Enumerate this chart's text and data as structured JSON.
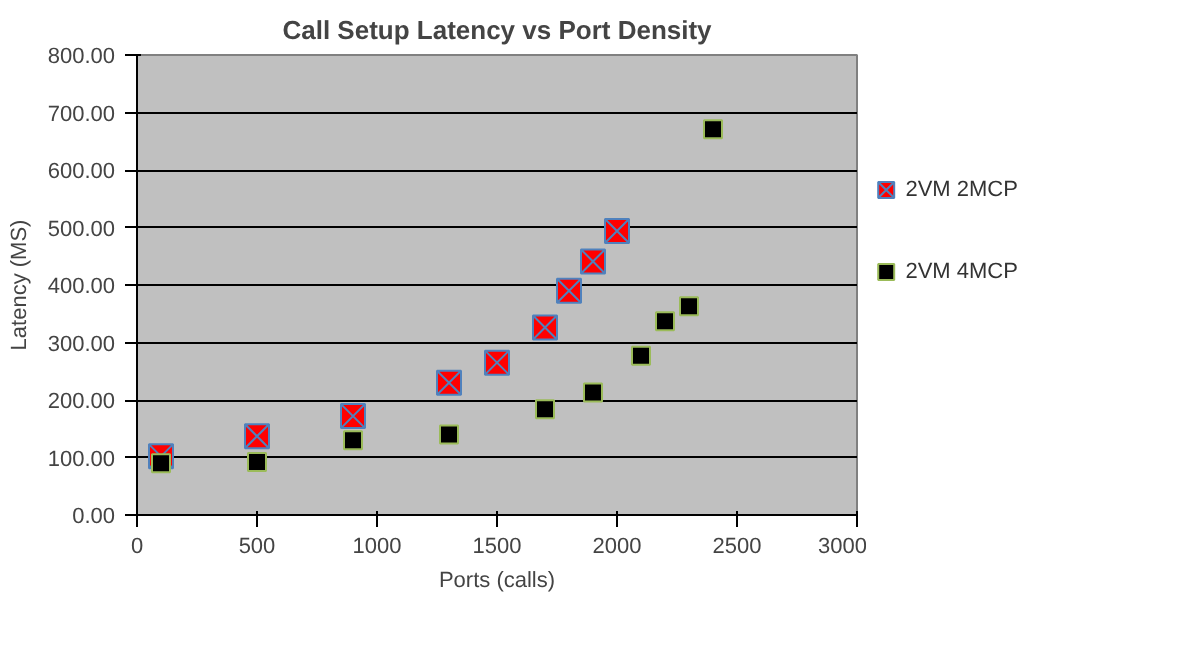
{
  "chart_data": {
    "type": "scatter",
    "title": "Call Setup Latency vs Port Density",
    "xlabel": "Ports (calls)",
    "ylabel": "Latency (MS)",
    "xlim": [
      0,
      3000
    ],
    "xticks": [
      0,
      500,
      1000,
      1500,
      2000,
      2500,
      3000
    ],
    "ylim": [
      0,
      800
    ],
    "yticks": [
      {
        "value": 0,
        "label": "0.00"
      },
      {
        "value": 100,
        "label": "100.00"
      },
      {
        "value": 200,
        "label": "200.00"
      },
      {
        "value": 300,
        "label": "300.00"
      },
      {
        "value": 400,
        "label": "400.00"
      },
      {
        "value": 500,
        "label": "500.00"
      },
      {
        "value": 600,
        "label": "600.00"
      },
      {
        "value": 700,
        "label": "700.00"
      },
      {
        "value": 800,
        "label": "800.00"
      }
    ],
    "grid": "y",
    "legend": "right",
    "series": [
      {
        "name": "2VM 2MCP",
        "color": "#ff0000",
        "marker": "cross",
        "x": [
          100,
          500,
          900,
          1300,
          1500,
          1700,
          1800,
          1900,
          2000
        ],
        "values": [
          102,
          137,
          172,
          230,
          265,
          326,
          390,
          441,
          494
        ]
      },
      {
        "name": "2VM 4MCP",
        "color": "#000000",
        "marker": "square",
        "x": [
          100,
          500,
          900,
          1300,
          1700,
          1900,
          2100,
          2200,
          2300,
          2400
        ],
        "values": [
          90,
          92,
          130,
          140,
          184,
          213,
          277,
          337,
          363,
          671
        ]
      }
    ]
  }
}
